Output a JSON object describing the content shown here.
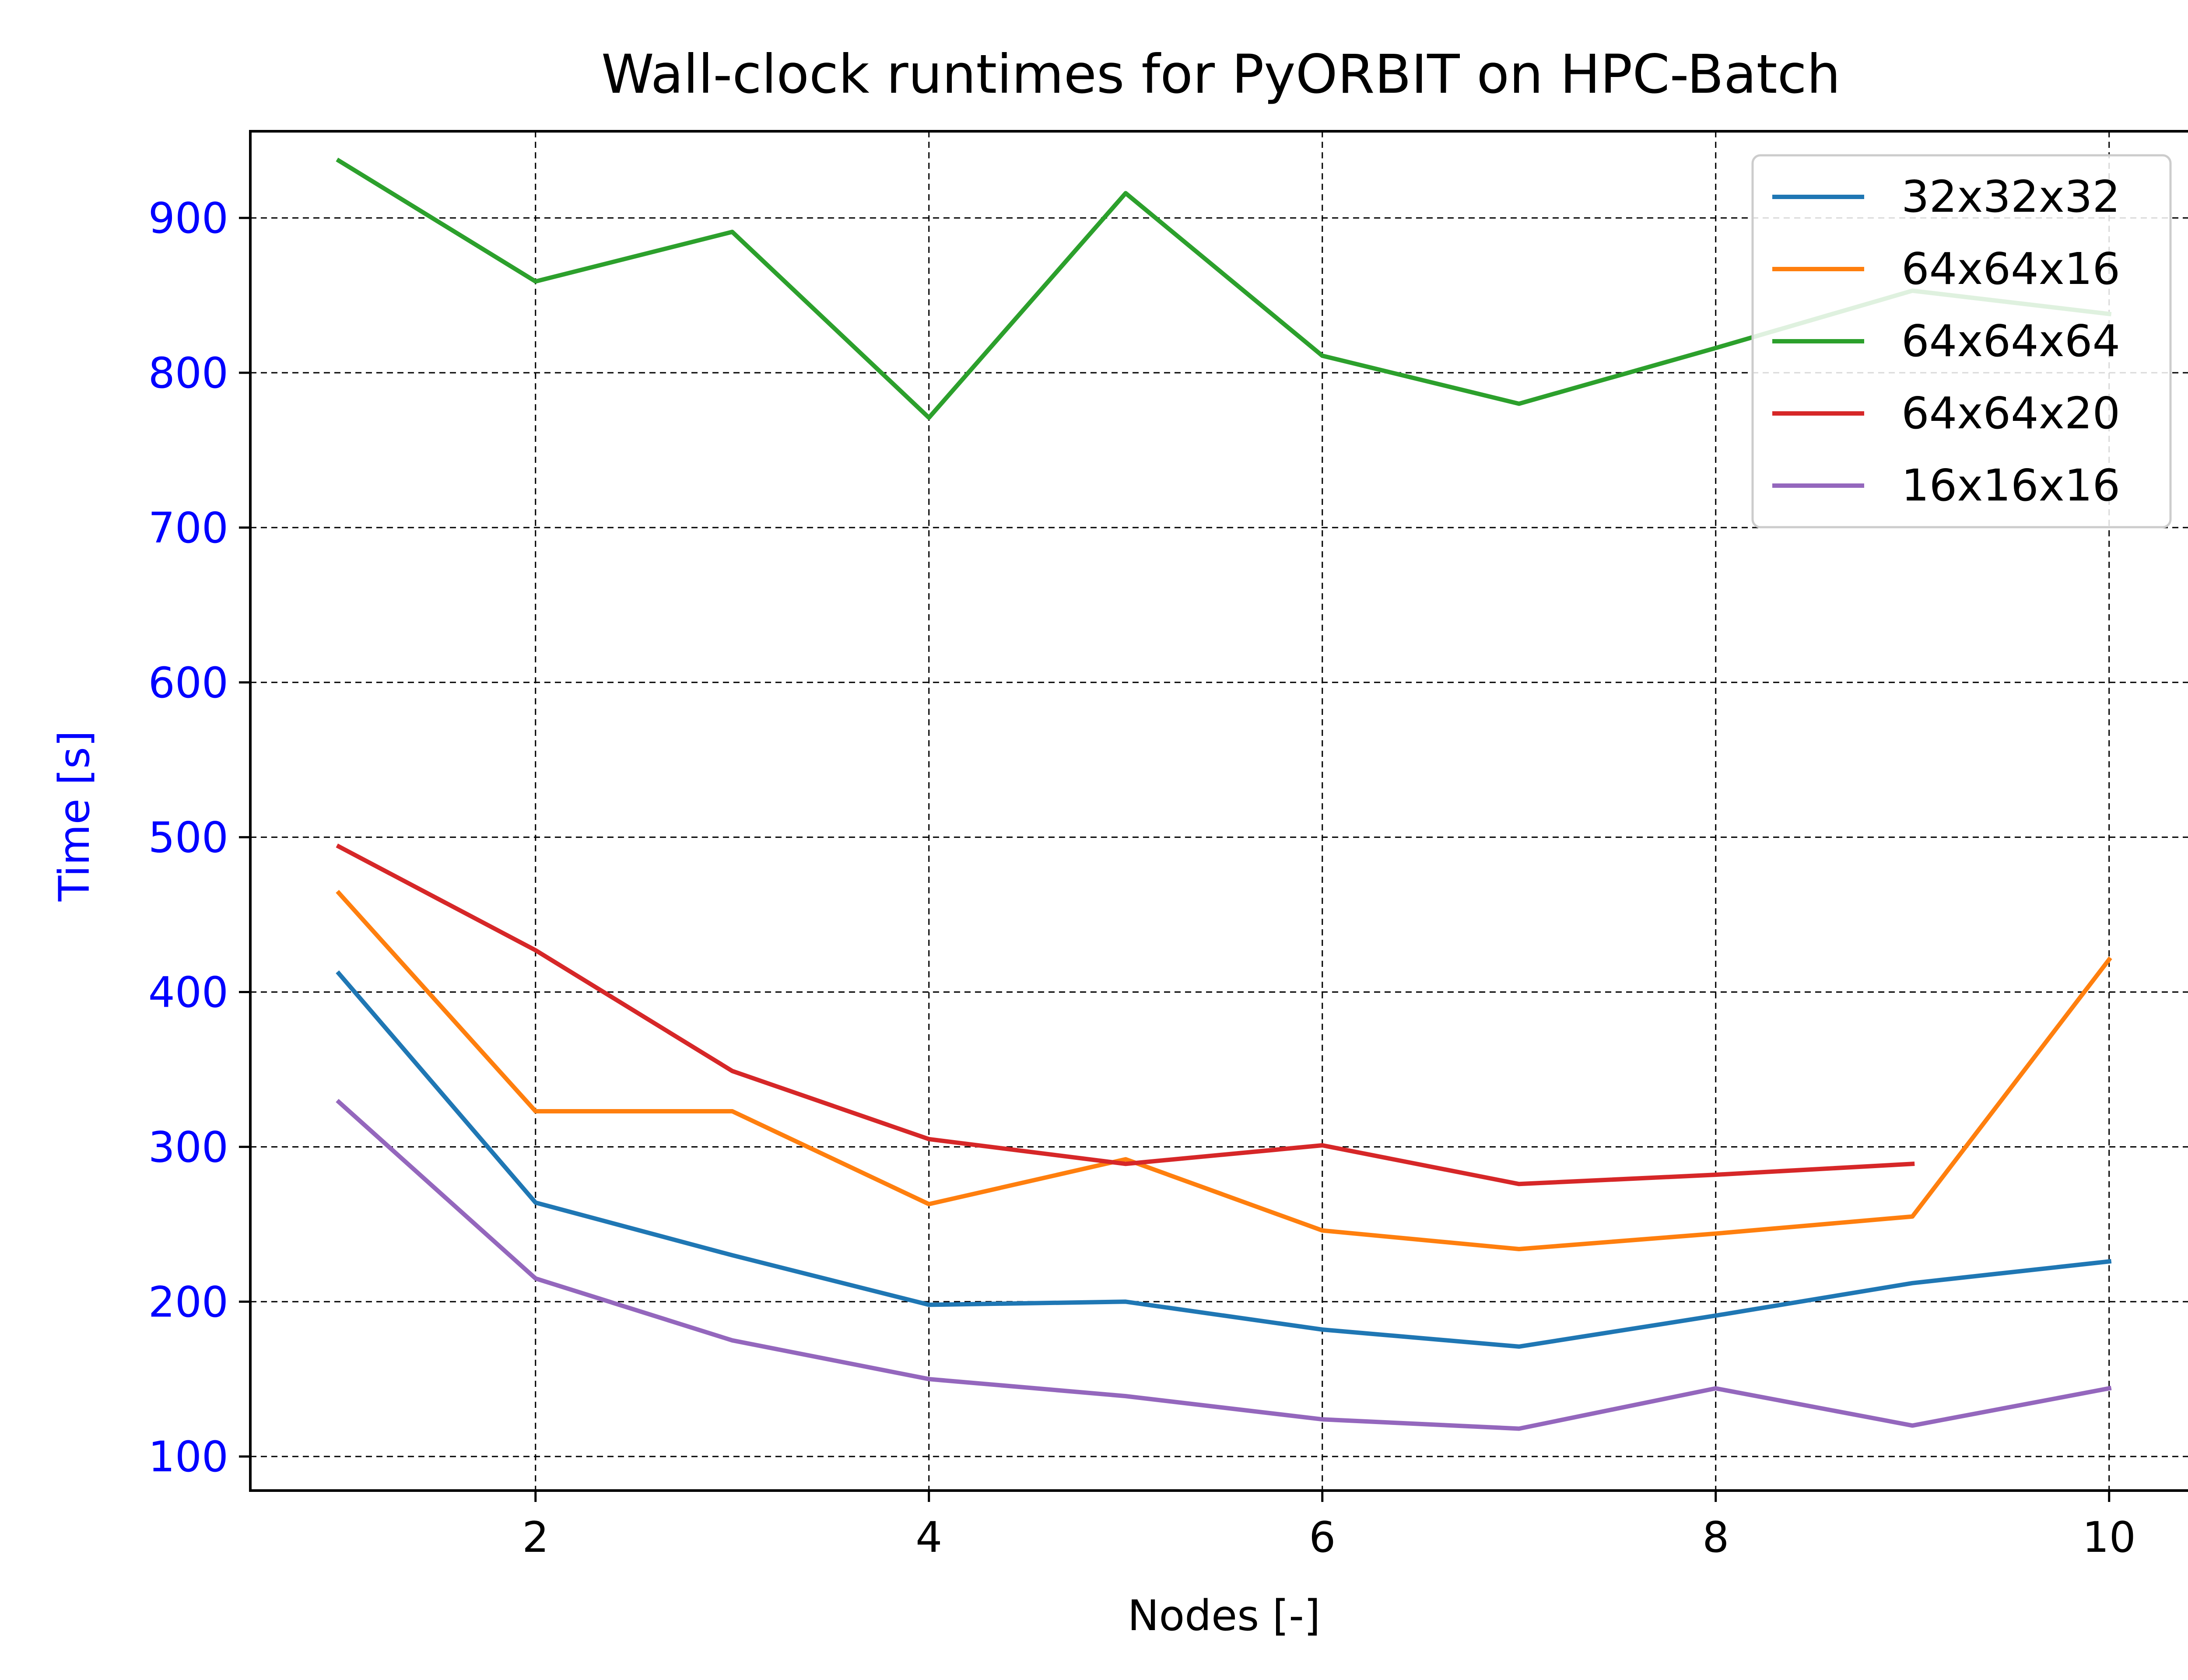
{
  "chart_data": {
    "type": "line",
    "title": "Wall-clock runtimes for PyORBIT on HPC-Batch",
    "xlabel": "Nodes [-]",
    "ylabel": "Time [s]",
    "xlim": [
      0.55,
      10.45
    ],
    "ylim": [
      78,
      956
    ],
    "xticks": [
      2,
      4,
      6,
      8,
      10
    ],
    "yticks": [
      100,
      200,
      300,
      400,
      500,
      600,
      700,
      800,
      900
    ],
    "grid": true,
    "legend_position": "top-right",
    "colors": {
      "ytick_label": "#0000ff",
      "ylabel": "#0000ff",
      "grid": "#000000",
      "axes": "#000000"
    },
    "series": [
      {
        "name": "32x32x32",
        "color": "#1f77b4",
        "x": [
          1,
          2,
          3,
          4,
          5,
          6,
          7,
          8,
          9,
          10
        ],
        "y": [
          412,
          264,
          230,
          198,
          200,
          182,
          171,
          191,
          212,
          226
        ]
      },
      {
        "name": "64x64x16",
        "color": "#ff7f0e",
        "x": [
          1,
          2,
          3,
          4,
          5,
          6,
          7,
          8,
          9,
          10
        ],
        "y": [
          464,
          323,
          323,
          263,
          292,
          246,
          234,
          244,
          255,
          421
        ]
      },
      {
        "name": "64x64x64",
        "color": "#2ca02c",
        "x": [
          1,
          2,
          3,
          4,
          5,
          6,
          7,
          8,
          9,
          10
        ],
        "y": [
          937,
          859,
          891,
          771,
          916,
          811,
          780,
          816,
          853,
          838
        ]
      },
      {
        "name": "64x64x20",
        "color": "#d62728",
        "x": [
          1,
          2,
          3,
          4,
          5,
          6,
          7,
          8,
          9
        ],
        "y": [
          494,
          427,
          349,
          305,
          289,
          301,
          276,
          282,
          289
        ]
      },
      {
        "name": "16x16x16",
        "color": "#9467bd",
        "x": [
          1,
          2,
          3,
          4,
          5,
          6,
          7,
          8,
          9,
          10
        ],
        "y": [
          329,
          215,
          175,
          150,
          139,
          124,
          118,
          144,
          120,
          144
        ]
      }
    ]
  }
}
